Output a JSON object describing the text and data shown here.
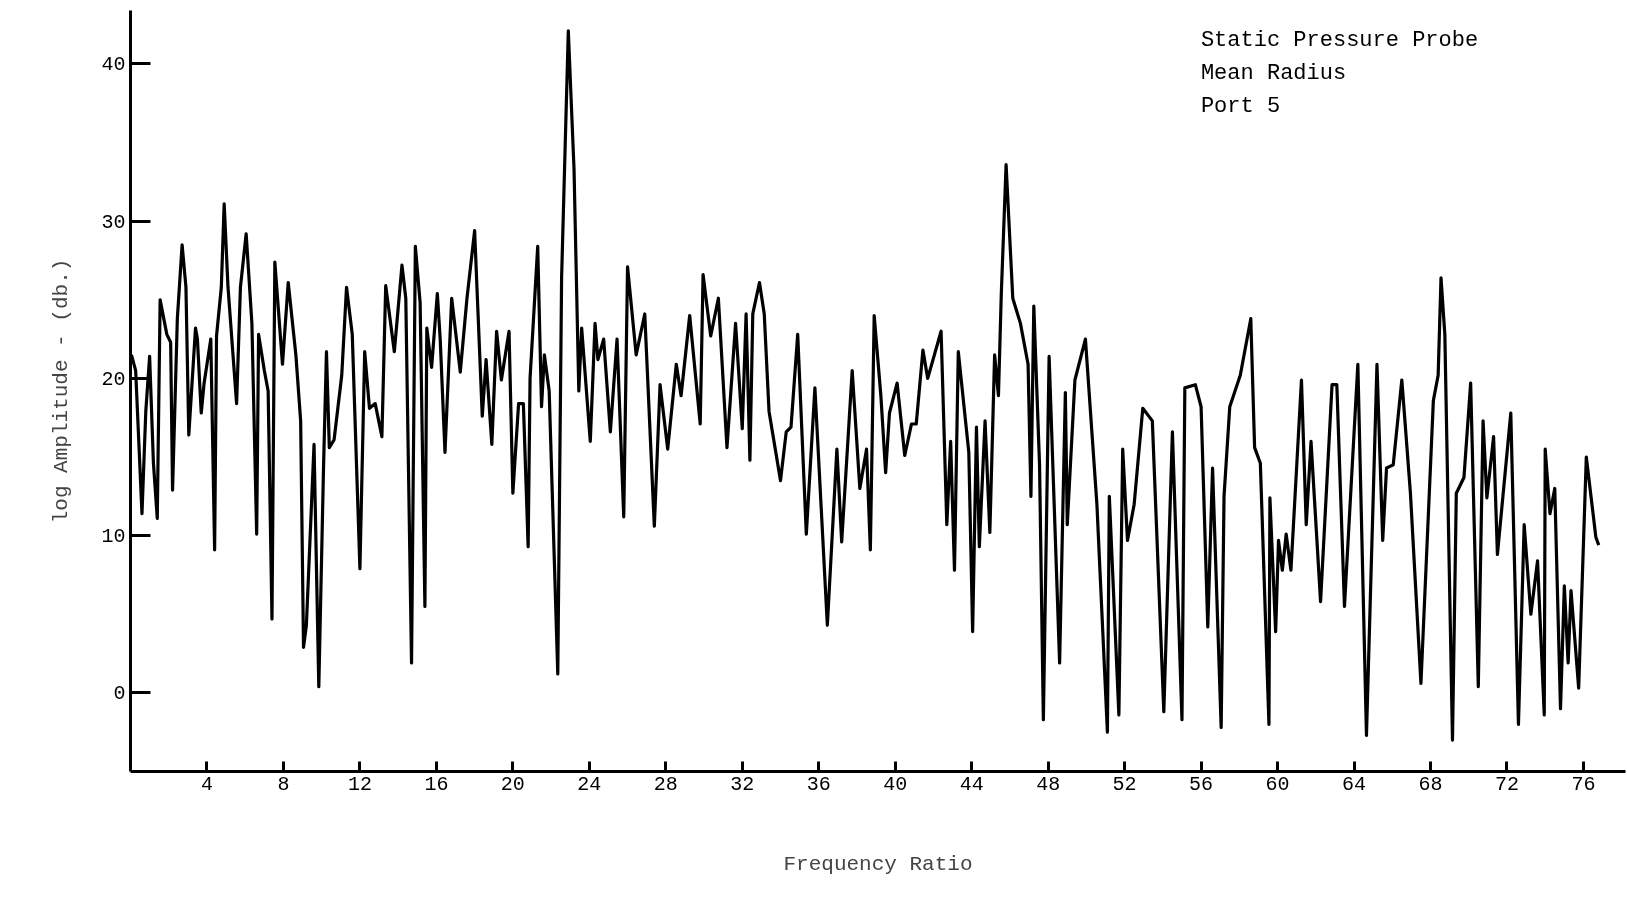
{
  "chart_data": {
    "type": "line",
    "xlabel": "Frequency Ratio",
    "ylabel": "log Amplitude - (db.)",
    "annotations": [
      "Static Pressure Probe",
      "Mean Radius",
      "Port 5"
    ],
    "xlim": [
      0,
      78.2
    ],
    "ylim": [
      -5,
      43.4
    ],
    "xticks": [
      4,
      8,
      12,
      16,
      20,
      24,
      28,
      32,
      36,
      40,
      44,
      48,
      52,
      56,
      60,
      64,
      68,
      72,
      76
    ],
    "yticks": [
      0,
      10,
      20,
      30,
      40
    ],
    "grid": false,
    "marker": "none",
    "line_style": "solid",
    "series": [
      {
        "color": "#000000",
        "x": [
          0.05,
          0.27,
          0.6,
          0.8,
          1.0,
          1.2,
          1.4,
          1.55,
          1.9,
          2.1,
          2.2,
          2.45,
          2.7,
          2.9,
          3.05,
          3.4,
          3.5,
          3.7,
          3.85,
          4.2,
          4.4,
          4.5,
          4.75,
          4.9,
          5.1,
          5.55,
          5.75,
          6.05,
          6.35,
          6.6,
          6.7,
          7.0,
          7.2,
          7.4,
          7.55,
          7.95,
          8.25,
          8.65,
          8.9,
          9.05,
          9.2,
          9.6,
          9.85,
          10.1,
          10.25,
          10.4,
          10.65,
          11.05,
          11.3,
          11.6,
          12.0,
          12.25,
          12.5,
          12.8,
          13.15,
          13.35,
          13.8,
          14.2,
          14.4,
          14.7,
          14.9,
          15.15,
          15.4,
          15.5,
          15.75,
          16.05,
          16.2,
          16.45,
          16.8,
          17.25,
          17.6,
          18.0,
          18.4,
          18.6,
          18.9,
          19.15,
          19.4,
          19.8,
          20.0,
          20.3,
          20.55,
          20.8,
          20.9,
          21.3,
          21.5,
          21.65,
          21.9,
          22.35,
          22.55,
          22.9,
          23.2,
          23.45,
          23.6,
          24.05,
          24.3,
          24.45,
          24.75,
          25.1,
          25.45,
          25.8,
          26.0,
          26.45,
          26.9,
          27.4,
          27.7,
          28.1,
          28.55,
          28.8,
          29.25,
          29.8,
          29.95,
          30.35,
          30.75,
          31.2,
          31.65,
          32.0,
          32.2,
          32.4,
          32.55,
          32.9,
          33.15,
          33.4,
          34.0,
          34.3,
          34.55,
          34.9,
          35.35,
          35.8,
          36.45,
          36.95,
          37.2,
          37.75,
          38.15,
          38.5,
          38.7,
          38.9,
          39.25,
          39.5,
          39.7,
          40.1,
          40.5,
          40.85,
          41.1,
          41.45,
          41.7,
          42.4,
          42.7,
          42.9,
          43.1,
          43.3,
          43.85,
          44.05,
          44.25,
          44.4,
          44.7,
          44.95,
          45.2,
          45.4,
          45.55,
          45.8,
          46.15,
          46.55,
          46.95,
          47.1,
          47.25,
          47.55,
          47.75,
          48.05,
          48.6,
          48.9,
          49.0,
          49.4,
          49.95,
          50.55,
          51.1,
          51.2,
          51.7,
          51.9,
          52.15,
          52.5,
          52.95,
          53.45,
          54.05,
          54.5,
          55.0,
          55.15,
          55.7,
          56.0,
          56.35,
          56.6,
          57.05,
          57.2,
          57.5,
          58.05,
          58.6,
          58.8,
          59.1,
          59.55,
          59.6,
          59.9,
          60.05,
          60.25,
          60.45,
          60.7,
          61.25,
          61.5,
          61.75,
          62.25,
          62.85,
          63.1,
          63.5,
          64.2,
          64.65,
          65.2,
          65.5,
          65.7,
          66.05,
          66.5,
          66.95,
          67.5,
          68.15,
          68.4,
          68.55,
          68.75,
          69.15,
          69.35,
          69.75,
          70.1,
          70.5,
          70.75,
          70.95,
          71.3,
          71.5,
          72.2,
          72.6,
          72.9,
          73.25,
          73.6,
          73.95,
          74.0,
          74.25,
          74.5,
          74.8,
          75.0,
          75.2,
          75.35,
          75.75,
          76.15,
          76.65,
          76.8
        ],
        "values": [
          21.5,
          20.5,
          11.4,
          17.9,
          21.4,
          14.6,
          11.1,
          25,
          22.8,
          22.3,
          12.9,
          23.8,
          28.5,
          25.8,
          16.4,
          23.2,
          22.5,
          17.8,
          19.7,
          22.5,
          9.1,
          22.7,
          25.8,
          31.1,
          25.8,
          18.4,
          25.8,
          29.2,
          23.5,
          10.1,
          22.8,
          20.5,
          19.2,
          4.7,
          27.4,
          20.9,
          26.1,
          21.5,
          17.3,
          2.9,
          4.3,
          15.8,
          0.4,
          14.5,
          21.7,
          15.6,
          16.1,
          20.2,
          25.8,
          22.8,
          7.9,
          21.7,
          18.1,
          18.4,
          16.3,
          25.9,
          21.7,
          27.2,
          25.1,
          1.9,
          28.4,
          24.8,
          5.5,
          23.2,
          20.7,
          25.4,
          22.5,
          15.3,
          25.1,
          20.4,
          25.1,
          29.4,
          17.6,
          21.2,
          15.8,
          23.0,
          19.9,
          23.0,
          12.7,
          18.4,
          18.4,
          9.3,
          20.0,
          28.4,
          18.2,
          21.5,
          19.2,
          1.2,
          26.4,
          42.1,
          33.3,
          19.2,
          23.2,
          16.0,
          23.5,
          21.2,
          22.5,
          16.6,
          22.5,
          11.2,
          27.1,
          21.5,
          24.1,
          10.6,
          19.6,
          15.5,
          20.9,
          18.9,
          24.0,
          17.1,
          26.6,
          22.7,
          25.1,
          15.6,
          23.5,
          16.8,
          24.1,
          14.8,
          24.1,
          26.1,
          24.1,
          17.9,
          13.5,
          16.6,
          16.9,
          22.8,
          10.1,
          19.4,
          4.3,
          15.5,
          9.6,
          20.5,
          13.0,
          15.5,
          9.1,
          24.0,
          18.9,
          14.0,
          17.8,
          19.7,
          15.1,
          17.1,
          17.1,
          21.8,
          20.0,
          23.0,
          10.7,
          16.0,
          7.8,
          21.7,
          15.3,
          3.9,
          16.9,
          9.3,
          17.3,
          10.2,
          21.5,
          18.9,
          25.4,
          33.6,
          25.1,
          23.5,
          20.9,
          12.5,
          24.6,
          14.5,
          -1.7,
          21.4,
          1.9,
          19.1,
          10.7,
          19.9,
          22.5,
          12.0,
          -2.5,
          12.5,
          -1.4,
          15.5,
          9.7,
          12.0,
          18.1,
          17.3,
          -1.2,
          16.6,
          -1.7,
          19.4,
          19.6,
          18.2,
          4.2,
          14.3,
          -2.2,
          12.5,
          18.2,
          20.2,
          23.8,
          15.6,
          14.6,
          -2.0,
          12.4,
          3.9,
          9.7,
          7.8,
          10.1,
          7.8,
          19.9,
          10.7,
          16.0,
          5.8,
          19.6,
          19.6,
          5.5,
          20.9,
          -2.7,
          20.9,
          9.7,
          14.3,
          14.5,
          19.9,
          12.7,
          0.6,
          18.6,
          20.2,
          26.4,
          22.8,
          -3.0,
          12.7,
          13.7,
          19.7,
          0.4,
          17.3,
          12.4,
          16.3,
          8.8,
          17.8,
          -2.0,
          10.7,
          5.0,
          8.4,
          -1.4,
          15.5,
          11.4,
          13.0,
          -1.0,
          6.8,
          1.9,
          6.5,
          0.3,
          15.0,
          9.9,
          9.4
        ]
      }
    ]
  }
}
